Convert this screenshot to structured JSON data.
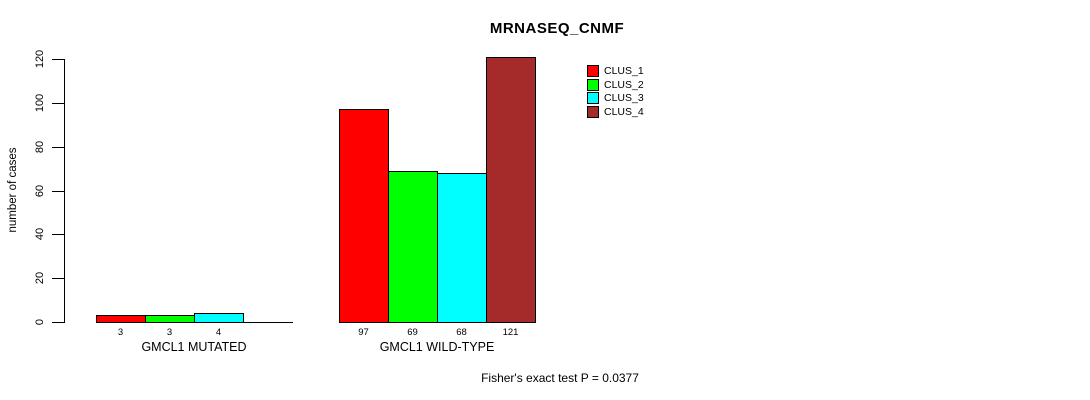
{
  "chart_data": {
    "type": "bar",
    "title": "MRNASEQ_CNMF",
    "ylabel": "number of cases",
    "xlabel": "",
    "ylim": [
      0,
      120
    ],
    "yticks": [
      0,
      20,
      40,
      60,
      80,
      100,
      120
    ],
    "grid": false,
    "categories": [
      "GMCL1 MUTATED",
      "GMCL1 WILD-TYPE"
    ],
    "series": [
      {
        "name": "CLUS_1",
        "color": "#FF0000",
        "values": [
          3,
          97
        ]
      },
      {
        "name": "CLUS_2",
        "color": "#00FF00",
        "values": [
          3,
          69
        ]
      },
      {
        "name": "CLUS_3",
        "color": "#00FFFF",
        "values": [
          4,
          68
        ]
      },
      {
        "name": "CLUS_4",
        "color": "#A52A2A",
        "values": [
          0,
          121
        ]
      }
    ],
    "bar_value_labels": true,
    "hide_zero_value_labels": true,
    "legend": {
      "position": "inside-top-right",
      "entries": [
        "CLUS_1",
        "CLUS_2",
        "CLUS_3",
        "CLUS_4"
      ]
    },
    "annotation": "Fisher's exact test P = 0.0377"
  }
}
